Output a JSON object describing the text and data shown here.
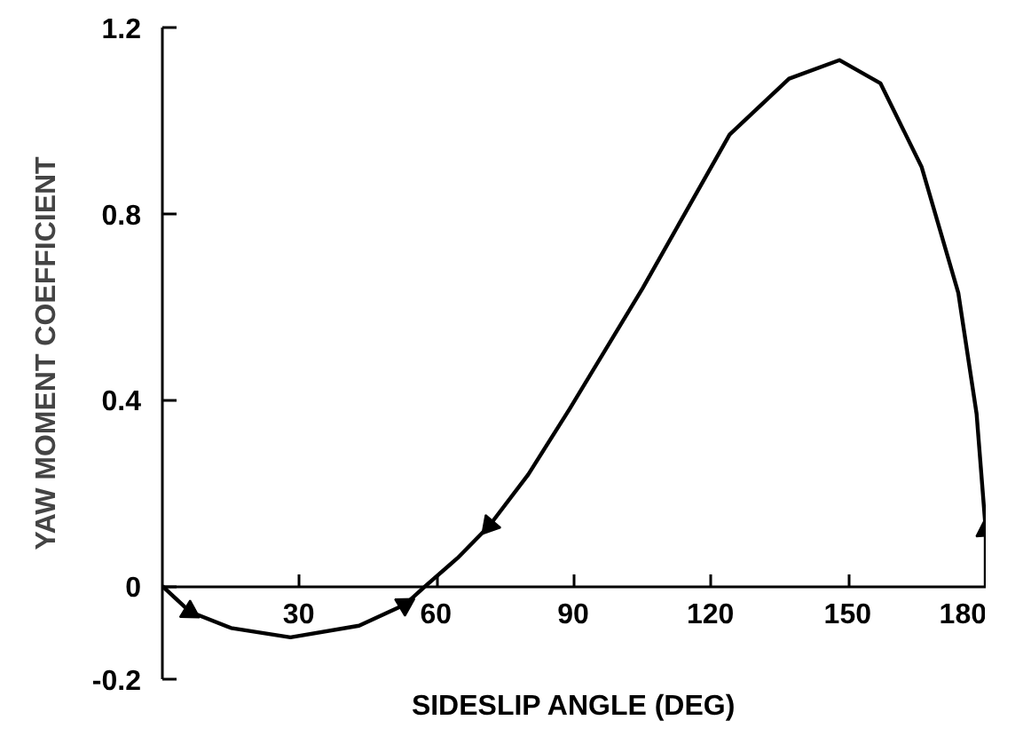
{
  "chart_data": {
    "type": "line",
    "xlabel": "SIDESLIP ANGLE (DEG)",
    "ylabel": "YAW MOMENT COEFFICIENT",
    "xlim": [
      0,
      180
    ],
    "ylim": [
      -0.2,
      1.2
    ],
    "xticks": [
      30,
      60,
      90,
      120,
      150,
      180
    ],
    "yticks": [
      -0.2,
      0,
      0.4,
      0.8,
      1.2
    ],
    "grid": false,
    "series": [
      {
        "color": "#000000",
        "x": [
          0,
          6,
          15,
          28,
          43,
          53,
          57.5,
          64.5,
          71.5,
          80,
          89,
          105,
          124,
          137,
          148,
          157,
          166,
          174,
          178,
          180,
          180
        ],
        "values": [
          0,
          -0.055,
          -0.09,
          -0.11,
          -0.085,
          -0.04,
          0,
          0.06,
          0.13,
          0.24,
          0.38,
          0.64,
          0.97,
          1.09,
          1.13,
          1.08,
          0.9,
          0.63,
          0.37,
          0.12,
          0
        ]
      }
    ]
  }
}
